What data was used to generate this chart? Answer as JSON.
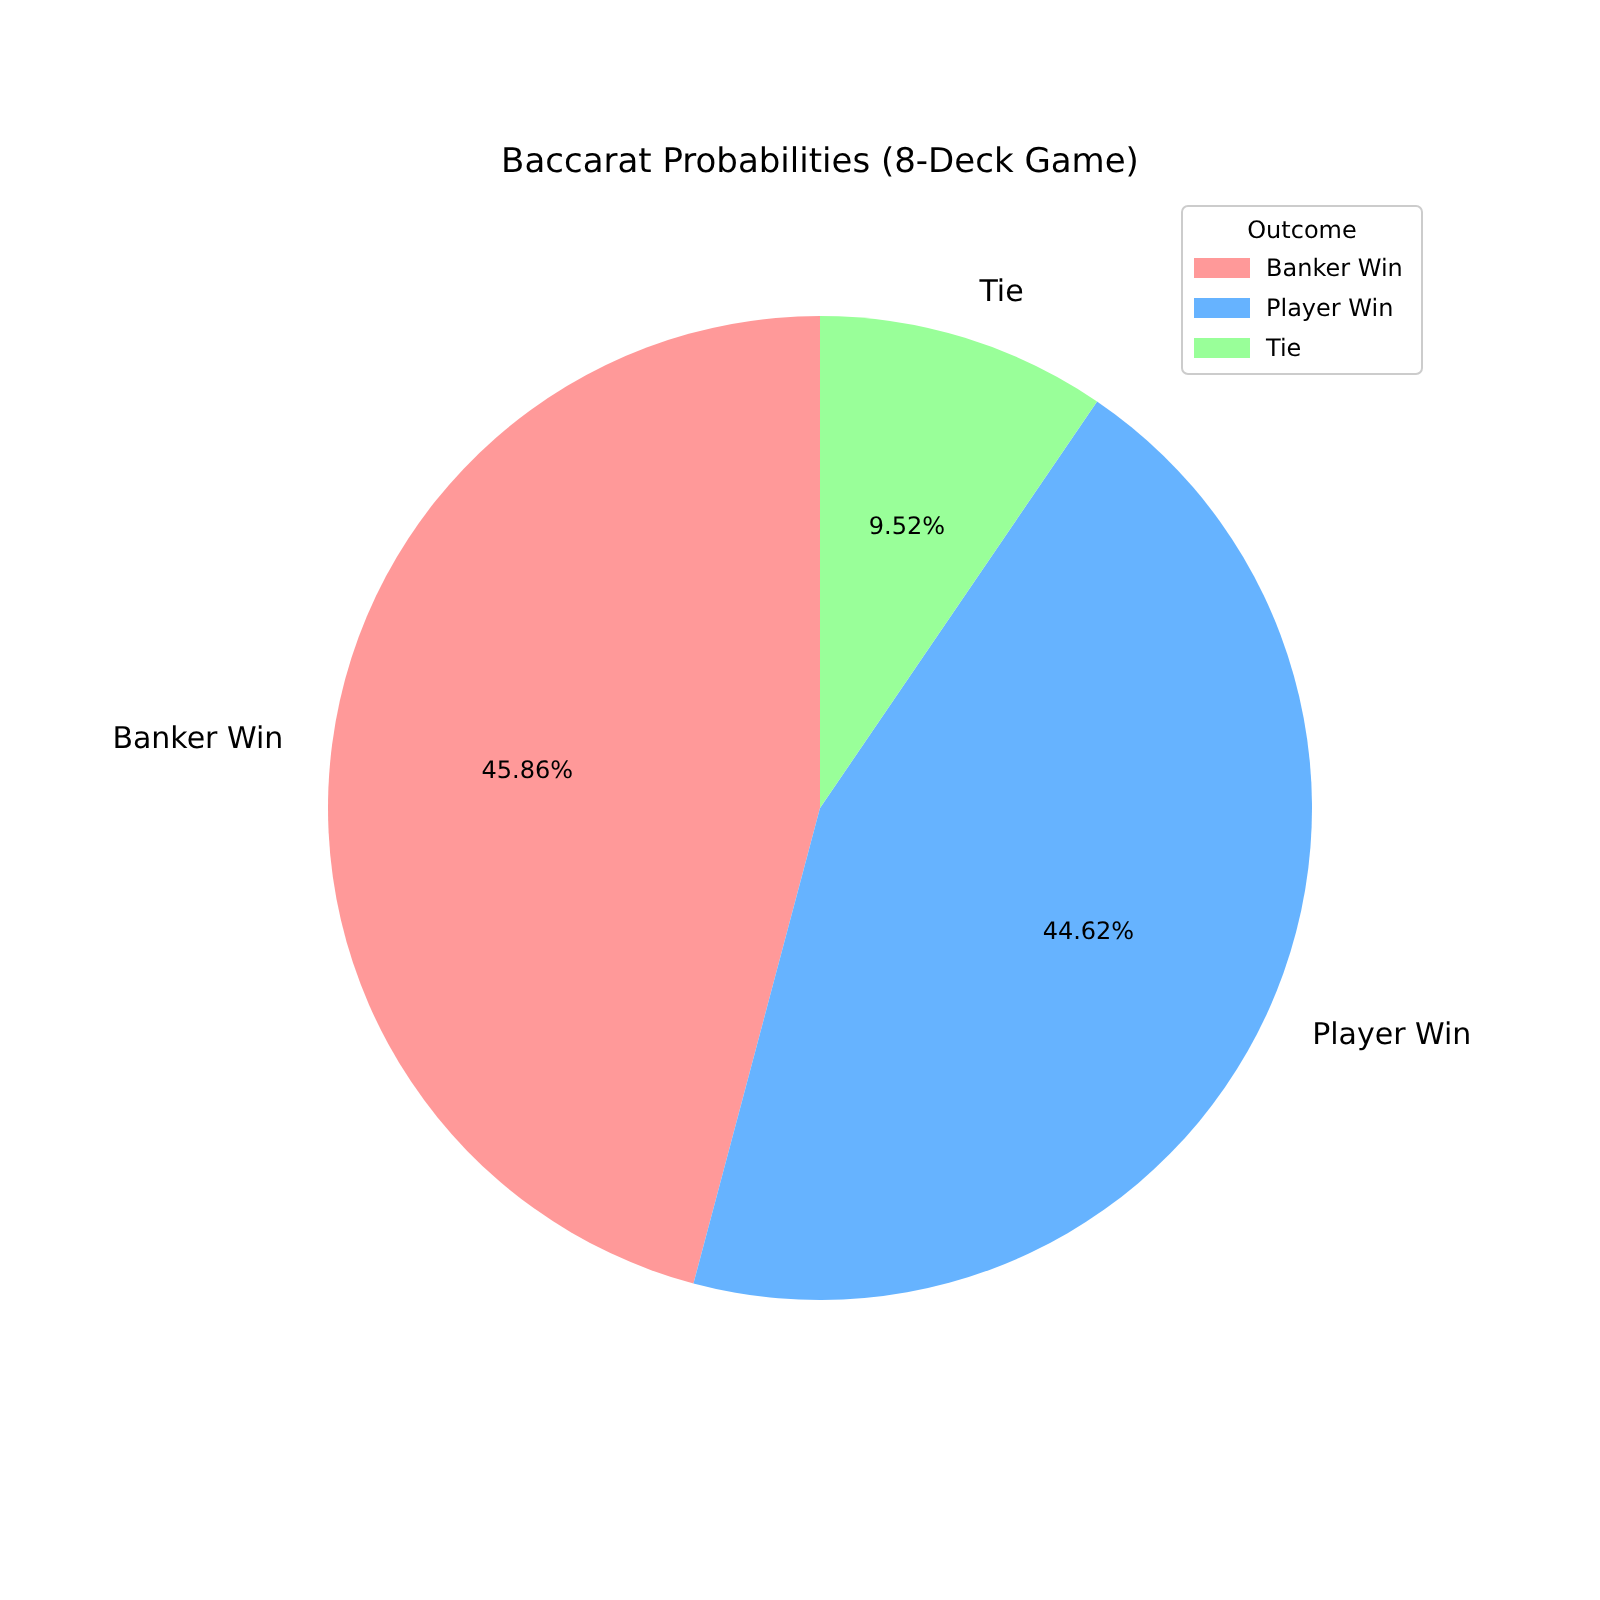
{
  "chart_data": {
    "type": "pie",
    "title": "Baccarat Probabilities (8-Deck Game)",
    "categories": [
      "Banker Win",
      "Player Win",
      "Tie"
    ],
    "values": [
      45.86,
      44.62,
      9.52
    ],
    "colors": [
      "#ff9999",
      "#66b3ff",
      "#99ff99"
    ],
    "value_labels": [
      "45.86%",
      "44.62%",
      "9.52%"
    ],
    "legend_title": "Outcome",
    "legend": "top right"
  }
}
